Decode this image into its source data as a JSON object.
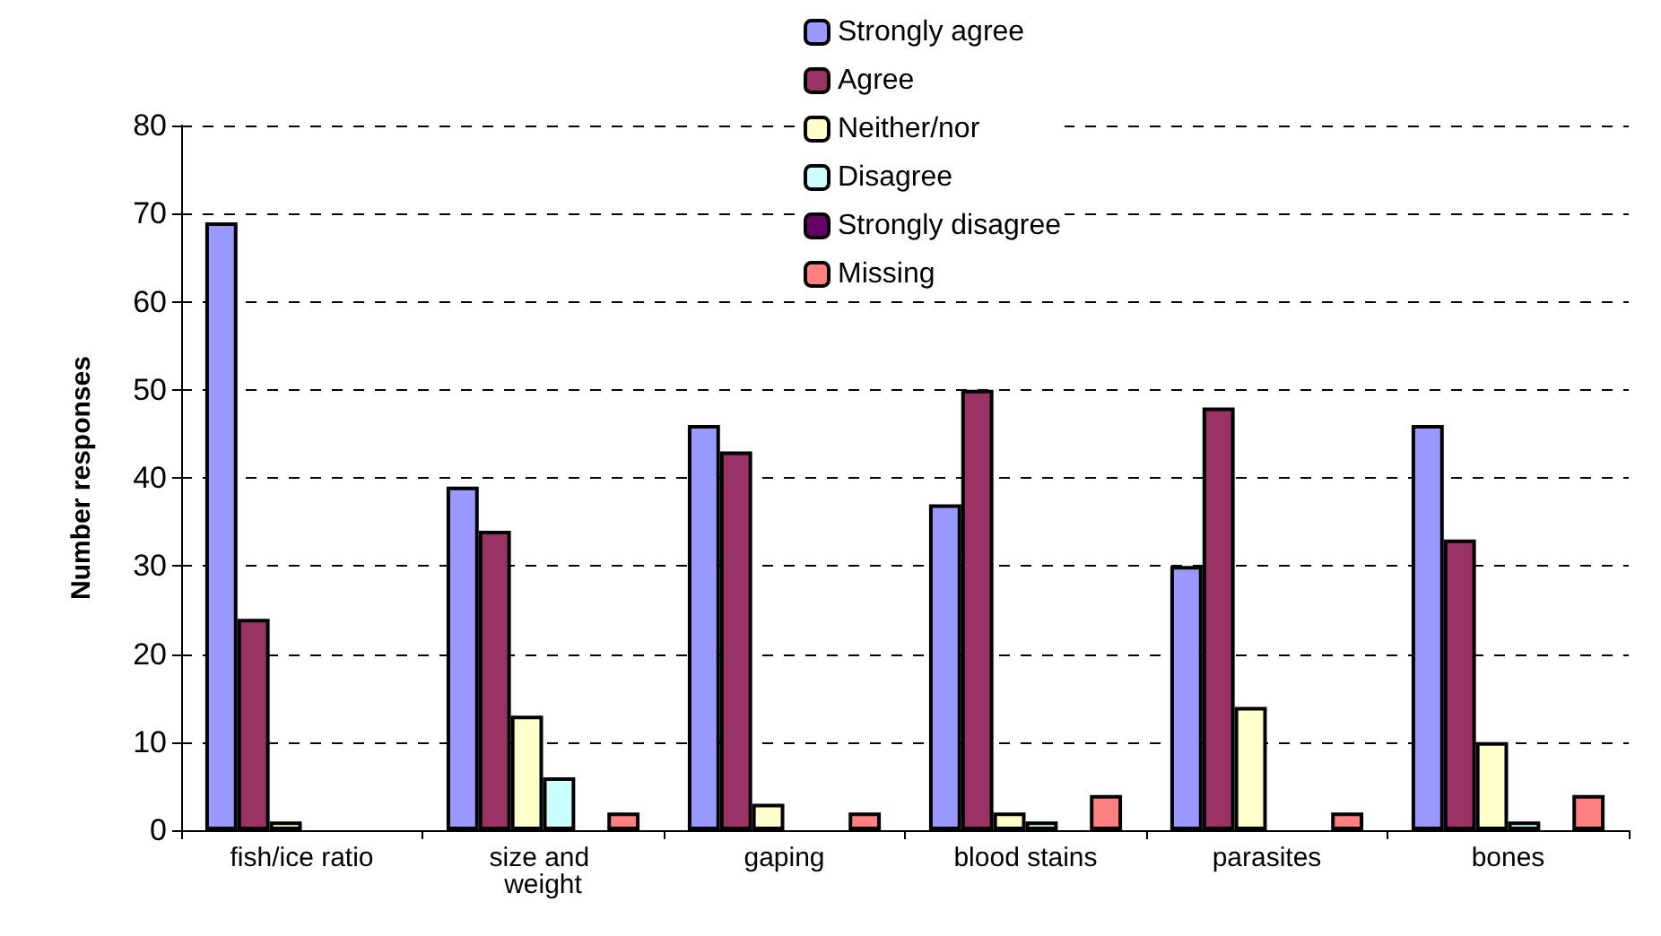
{
  "chart_data": {
    "type": "bar",
    "ylabel": "Number responses",
    "categories": [
      "fish/ice ratio",
      "size and weight",
      "gaping",
      "blood stains",
      "parasites",
      "bones"
    ],
    "series": [
      {
        "name": "Strongly agree",
        "color": "#9999ff",
        "values": [
          69,
          39,
          46,
          37,
          30,
          46
        ]
      },
      {
        "name": "Agree",
        "color": "#993366",
        "values": [
          24,
          34,
          43,
          50,
          48,
          33
        ]
      },
      {
        "name": "Neither/nor",
        "color": "#ffffcc",
        "values": [
          1,
          13,
          3,
          2,
          14,
          10
        ]
      },
      {
        "name": "Disagree",
        "color": "#ccffff",
        "values": [
          null,
          6,
          null,
          1,
          null,
          1
        ]
      },
      {
        "name": "Strongly disagree",
        "color": "#660066",
        "values": [
          null,
          null,
          null,
          null,
          null,
          null
        ]
      },
      {
        "name": "Missing",
        "color": "#ff8080",
        "values": [
          null,
          2,
          2,
          4,
          2,
          4
        ]
      }
    ],
    "ylim": [
      0,
      80
    ],
    "yticks": [
      0,
      10,
      20,
      30,
      40,
      50,
      60,
      70,
      80
    ],
    "grid": "y",
    "legend": "top"
  }
}
